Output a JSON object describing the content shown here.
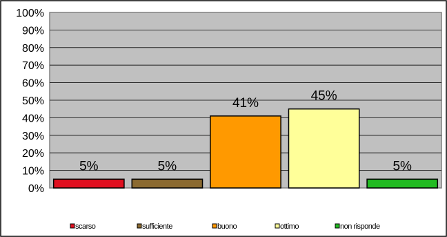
{
  "chart_data": {
    "type": "bar",
    "categories": [
      "scarso",
      "sufficiente",
      "buono",
      "ottimo",
      "non risponde"
    ],
    "values": [
      5,
      5,
      41,
      45,
      5
    ],
    "data_labels": [
      "5%",
      "5%",
      "41%",
      "45%",
      "5%"
    ],
    "colors": [
      "#e01020",
      "#8b6a30",
      "#ff9900",
      "#ffff99",
      "#22bb22"
    ],
    "ylim": [
      0,
      100
    ],
    "yticks": [
      0,
      10,
      20,
      30,
      40,
      50,
      60,
      70,
      80,
      90,
      100
    ],
    "ytick_labels": [
      "0%",
      "10%",
      "20%",
      "30%",
      "40%",
      "50%",
      "60%",
      "70%",
      "80%",
      "90%",
      "100%"
    ],
    "title": "",
    "xlabel": "",
    "ylabel": "",
    "grid": true,
    "legend_position": "bottom",
    "plot_background": "#c0c0c0"
  }
}
